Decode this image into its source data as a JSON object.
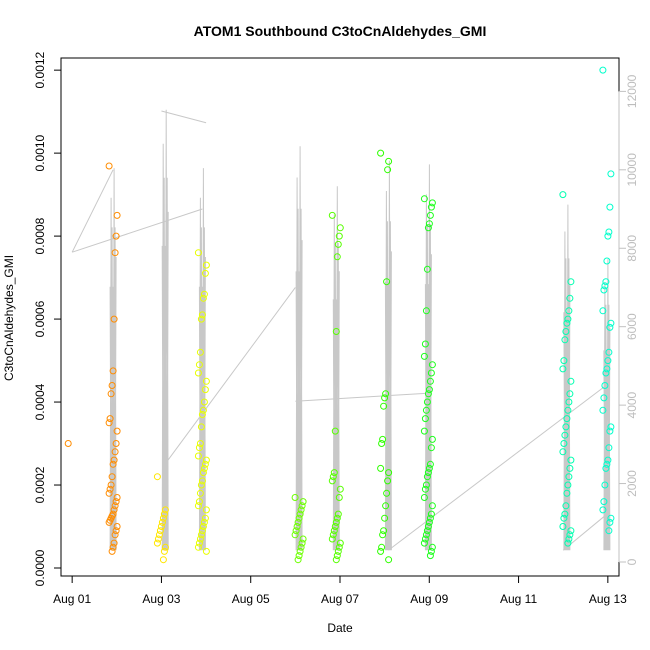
{
  "chart_data": {
    "type": "scatter",
    "title": "ATOM1 Southbound C3toCnAldehydes_GMI",
    "xlabel": "Date",
    "ylabel": "C3toCnAldehydes_GMI",
    "xlim": [
      "2016-07-31T18:00",
      "2016-08-13T06:00"
    ],
    "ylim": [
      0,
      0.00121
    ],
    "y2lim": [
      0,
      12800
    ],
    "x_ticks": [
      {
        "date": "2016-08-01",
        "label": "Aug 01"
      },
      {
        "date": "2016-08-03",
        "label": "Aug 03"
      },
      {
        "date": "2016-08-05",
        "label": "Aug 05"
      },
      {
        "date": "2016-08-07",
        "label": "Aug 07"
      },
      {
        "date": "2016-08-09",
        "label": "Aug 09"
      },
      {
        "date": "2016-08-11",
        "label": "Aug 11"
      },
      {
        "date": "2016-08-13",
        "label": "Aug 13"
      }
    ],
    "y_ticks": [
      "0.0000",
      "0.0002",
      "0.0004",
      "0.0006",
      "0.0008",
      "0.0010",
      "0.0012"
    ],
    "y2_ticks": [
      "0",
      "2000",
      "4000",
      "6000",
      "8000",
      "10000",
      "12000"
    ],
    "y2_color": "#c0c0c0",
    "color_scale": "rainbow by time (orange to cyan)",
    "grid": false,
    "legend": "none",
    "flights": [
      {
        "day": "2016-08-01T00:00",
        "points": [
          0.0003
        ],
        "color": "#ff8c00"
      },
      {
        "day": "2016-08-01T22:00",
        "points": [
          0.000969,
          0.00085,
          0.0008,
          0.00076,
          0.0006,
          0.000475,
          0.00044,
          0.00042,
          0.00036,
          0.00035,
          0.00033,
          0.0003,
          0.00028,
          0.00026,
          0.00025,
          0.00022,
          0.0002,
          0.00019,
          0.00018,
          0.00017,
          0.00016,
          0.00015,
          0.00014,
          0.00013,
          0.000125,
          0.00012,
          0.000115,
          0.00011,
          0.0001,
          9e-05,
          8e-05,
          6e-05,
          5e-05,
          4e-05
        ],
        "color": "#ff8c00"
      },
      {
        "day": "2016-08-03T00:00",
        "points": [
          0.00022,
          0.00014,
          0.00013,
          0.00012,
          0.00011,
          0.0001,
          9e-05,
          8e-05,
          7e-05,
          6e-05,
          5e-05,
          4e-05,
          2e-05
        ],
        "color": "#ffe600"
      },
      {
        "day": "2016-08-03T22:00",
        "points": [
          0.00076,
          0.00073,
          0.00071,
          0.00066,
          0.00065,
          0.00061,
          0.0006,
          0.00052,
          0.00049,
          0.00047,
          0.00045,
          0.00043,
          0.0004,
          0.00038,
          0.00037,
          0.00034,
          0.0003,
          0.00029,
          0.00027,
          0.00026,
          0.00025,
          0.00024,
          0.00023,
          0.00021,
          0.0002,
          0.00018,
          0.00016,
          0.00015,
          0.00014,
          0.00012,
          0.00011,
          0.0001,
          9e-05,
          8e-05,
          7e-05,
          6e-05,
          5e-05,
          4e-05
        ],
        "color": "#e8ff00"
      },
      {
        "day": "2016-08-06T02:00",
        "points": [
          0.00017,
          0.00016,
          0.00015,
          0.00014,
          0.00013,
          0.00012,
          0.00011,
          0.0001,
          9e-05,
          8e-05,
          7e-05,
          6e-05,
          5e-05,
          4e-05,
          3e-05,
          2e-05
        ],
        "color": "#6cff00"
      },
      {
        "day": "2016-08-06T22:00",
        "points": [
          0.00085,
          0.00082,
          0.0008,
          0.00078,
          0.00075,
          0.00057,
          0.00033,
          0.00023,
          0.00022,
          0.00021,
          0.00019,
          0.00017,
          0.00013,
          0.00012,
          0.00011,
          0.0001,
          9e-05,
          8e-05,
          7e-05,
          6e-05,
          5e-05,
          4e-05,
          3e-05,
          2e-05
        ],
        "color": "#57ff00"
      },
      {
        "day": "2016-08-08T00:00",
        "points": [
          0.001,
          0.00098,
          0.00096,
          0.00069,
          0.00042,
          0.00041,
          0.00039,
          0.00031,
          0.0003,
          0.00024,
          0.00023,
          0.00021,
          0.00018,
          0.00015,
          0.00012,
          9e-05,
          8e-05,
          5e-05,
          4e-05,
          2e-05
        ],
        "color": "#2eff00"
      },
      {
        "day": "2016-08-08T23:30",
        "points": [
          0.00089,
          0.00088,
          0.00087,
          0.00085,
          0.00083,
          0.00082,
          0.00072,
          0.00062,
          0.00054,
          0.00051,
          0.00049,
          0.00047,
          0.00045,
          0.00043,
          0.00042,
          0.0004,
          0.00038,
          0.00036,
          0.00033,
          0.00031,
          0.00029,
          0.00025,
          0.00024,
          0.00023,
          0.00022,
          0.0002,
          0.00019,
          0.00017,
          0.00015,
          0.00013,
          0.00012,
          0.00011,
          0.0001,
          9e-05,
          8e-05,
          7e-05,
          6e-05,
          5e-05,
          4e-05,
          3e-05
        ],
        "color": "#1cff1c"
      },
      {
        "day": "2016-08-12T02:00",
        "points": [
          0.0009,
          0.00069,
          0.00065,
          0.00062,
          0.0006,
          0.00059,
          0.00057,
          0.00055,
          0.0005,
          0.00048,
          0.00045,
          0.00042,
          0.0004,
          0.00038,
          0.00036,
          0.00034,
          0.00032,
          0.0003,
          0.00028,
          0.00026,
          0.00024,
          0.00022,
          0.0002,
          0.00018,
          0.00015,
          0.00013,
          0.00012,
          0.0001,
          9e-05,
          8e-05,
          7e-05,
          6e-05
        ],
        "color": "#00ffb0"
      },
      {
        "day": "2016-08-12T23:30",
        "points": [
          0.0012,
          0.00095,
          0.00087,
          0.00081,
          0.0008,
          0.00074,
          0.00069,
          0.00068,
          0.00067,
          0.00062,
          0.00059,
          0.00058,
          0.00052,
          0.0005,
          0.00048,
          0.00047,
          0.00044,
          0.00041,
          0.00038,
          0.00034,
          0.00033,
          0.00029,
          0.00026,
          0.00025,
          0.00024,
          0.0002,
          0.00016,
          0.00014,
          0.00012,
          0.00011,
          9e-05
        ],
        "color": "#00ffcc"
      }
    ],
    "altitude_series": {
      "name": "",
      "color": "#c8c8c8",
      "segments": [
        {
          "x": [
            "2016-08-01T00:00",
            "2016-08-03T22:00"
          ],
          "y": [
            7900,
            9000
          ]
        },
        {
          "x": [
            "2016-08-01T00:00",
            "2016-08-01T22:00"
          ],
          "y": [
            7900,
            10000
          ]
        },
        {
          "x": [
            "2016-08-03T00:00",
            "2016-08-04T00:00"
          ],
          "y": [
            11500,
            11200
          ]
        },
        {
          "x": [
            "2016-08-03T02:00",
            "2016-08-06T00:00"
          ],
          "y": [
            2500,
            7000
          ]
        },
        {
          "x": [
            "2016-08-06T00:00",
            "2016-08-08T22:00"
          ],
          "y": [
            4100,
            4300
          ]
        },
        {
          "x": [
            "2016-08-08T02:00",
            "2016-08-12T23:00"
          ],
          "y": [
            300,
            4500
          ]
        },
        {
          "x": [
            "2016-08-12T00:00",
            "2016-08-12T23:00"
          ],
          "y": [
            300,
            1200
          ]
        }
      ],
      "spikes": [
        {
          "day": "2016-08-01T22:00",
          "max": 10800
        },
        {
          "day": "2016-08-03T02:00",
          "max": 12400
        },
        {
          "day": "2016-08-03T22:00",
          "max": 10800
        },
        {
          "day": "2016-08-06T02:00",
          "max": 11400
        },
        {
          "day": "2016-08-06T22:00",
          "max": 10300
        },
        {
          "day": "2016-08-08T02:00",
          "max": 11000
        },
        {
          "day": "2016-08-08T23:30",
          "max": 10900
        },
        {
          "day": "2016-08-12T02:00",
          "max": 9800
        },
        {
          "day": "2016-08-12T23:30",
          "max": 8300
        }
      ]
    }
  }
}
